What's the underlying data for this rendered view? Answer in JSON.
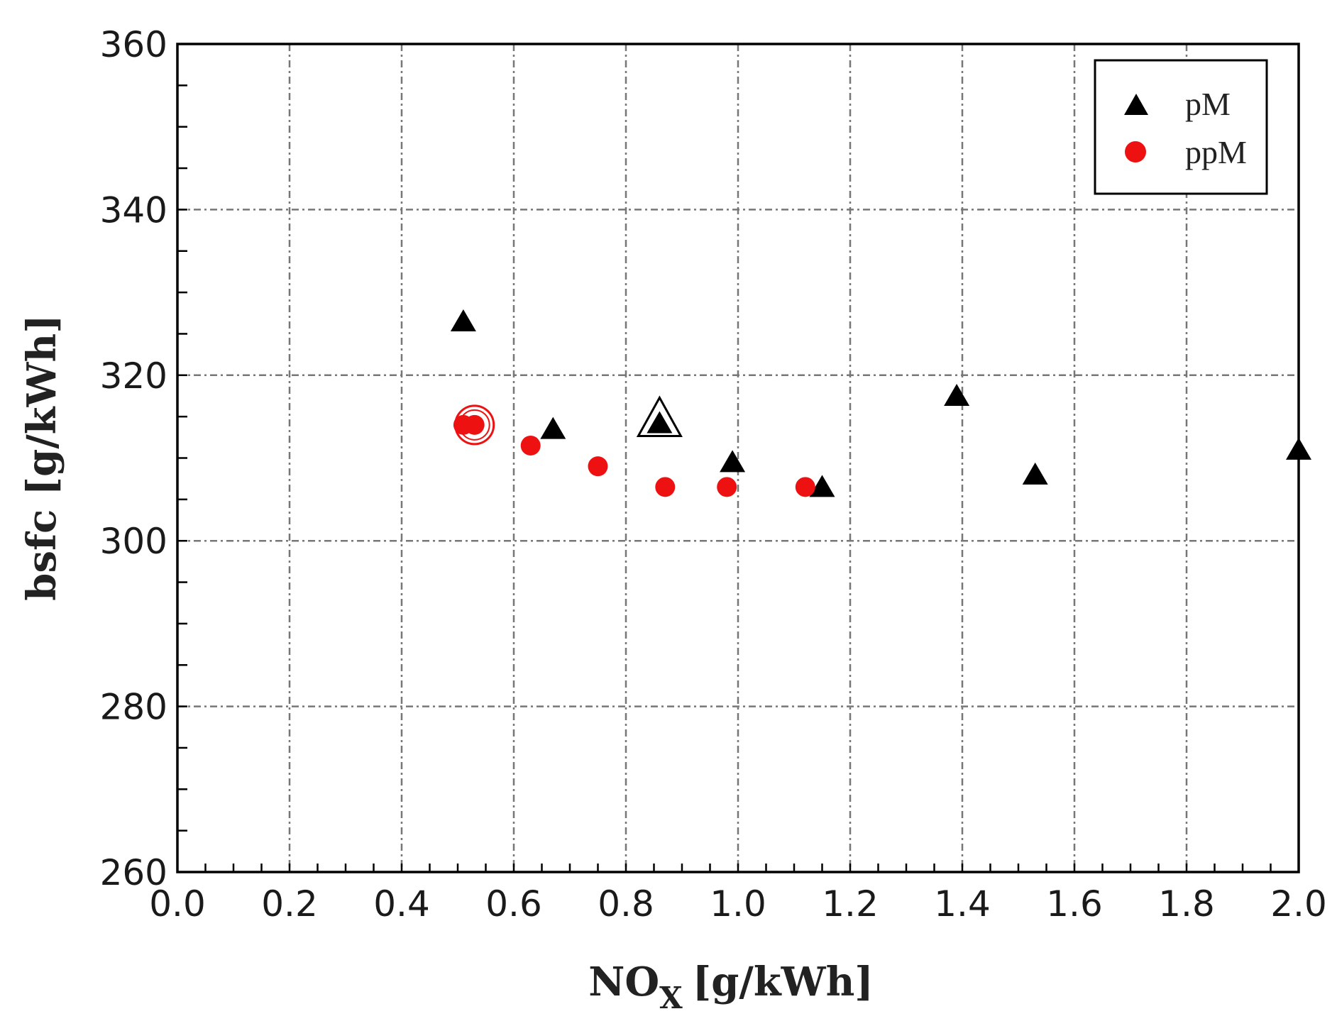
{
  "chart_data": {
    "type": "scatter",
    "title": "",
    "xlabel": "NO",
    "xlabel_sub": "X",
    "xlabel_unit": "[g/kWh]",
    "ylabel": "bsfc [g/kWh]",
    "xlim": [
      0.0,
      2.0
    ],
    "ylim": [
      260,
      360
    ],
    "xticks": [
      "0.0",
      "0.2",
      "0.4",
      "0.6",
      "0.8",
      "1.0",
      "1.2",
      "1.4",
      "1.6",
      "1.8",
      "2.0"
    ],
    "yticks": [
      "260",
      "280",
      "300",
      "320",
      "340",
      "360"
    ],
    "grid": true,
    "legend_position": "top-right",
    "series": [
      {
        "name": "pM",
        "marker": "triangle",
        "color": "#000000",
        "points": [
          {
            "x": 0.51,
            "y": 326.5
          },
          {
            "x": 0.67,
            "y": 313.5
          },
          {
            "x": 0.86,
            "y": 314.2,
            "highlight": true
          },
          {
            "x": 0.99,
            "y": 309.5
          },
          {
            "x": 1.15,
            "y": 306.5
          },
          {
            "x": 1.39,
            "y": 317.5
          },
          {
            "x": 1.53,
            "y": 308.0
          },
          {
            "x": 2.0,
            "y": 311.0
          }
        ]
      },
      {
        "name": "ppM",
        "marker": "circle",
        "color": "#ee1111",
        "points": [
          {
            "x": 0.51,
            "y": 314.0
          },
          {
            "x": 0.53,
            "y": 314.0,
            "highlight": true
          },
          {
            "x": 0.63,
            "y": 311.5
          },
          {
            "x": 0.75,
            "y": 309.0
          },
          {
            "x": 0.87,
            "y": 306.5
          },
          {
            "x": 0.98,
            "y": 306.5
          },
          {
            "x": 1.12,
            "y": 306.5
          }
        ]
      }
    ]
  }
}
